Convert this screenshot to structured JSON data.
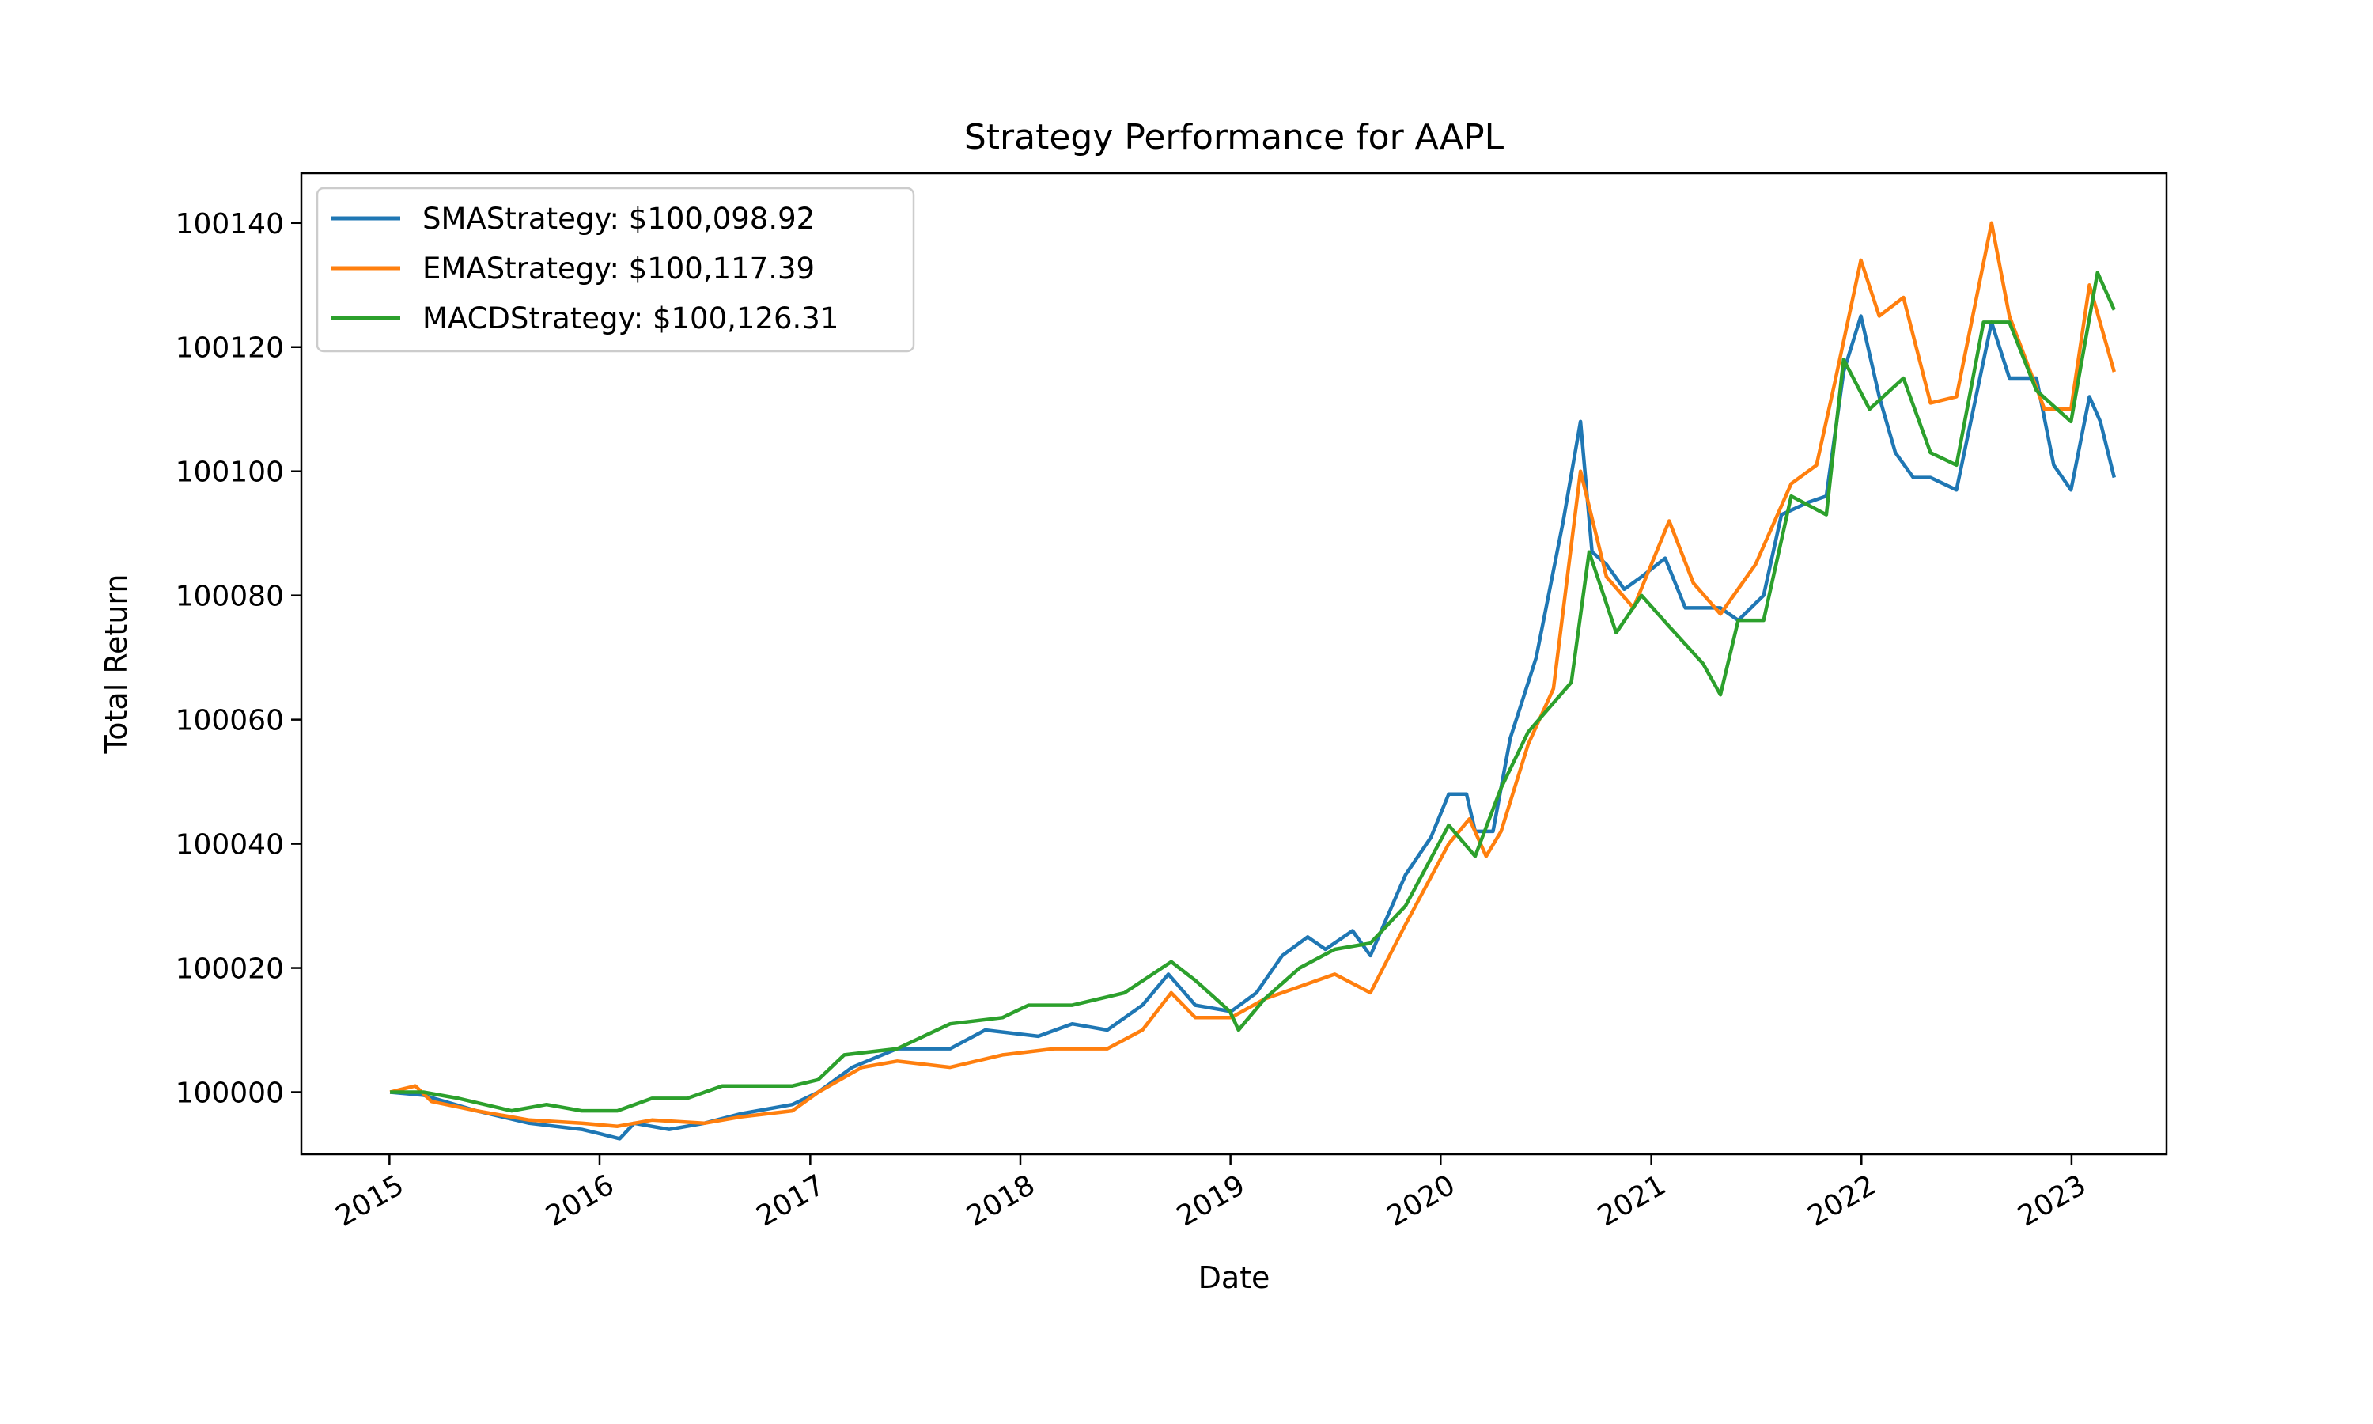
{
  "chart_data": {
    "type": "line",
    "title": "Strategy Performance for AAPL",
    "xlabel": "Date",
    "ylabel": "Total Return",
    "xlim": [
      "2014-08-01",
      "2023-06-15"
    ],
    "ylim": [
      99990,
      100148
    ],
    "x_ticks": [
      {
        "date": "2015-01-01",
        "label": "2015"
      },
      {
        "date": "2016-01-01",
        "label": "2016"
      },
      {
        "date": "2017-01-01",
        "label": "2017"
      },
      {
        "date": "2018-01-01",
        "label": "2018"
      },
      {
        "date": "2019-01-01",
        "label": "2019"
      },
      {
        "date": "2020-01-01",
        "label": "2020"
      },
      {
        "date": "2021-01-01",
        "label": "2021"
      },
      {
        "date": "2022-01-01",
        "label": "2022"
      },
      {
        "date": "2023-01-01",
        "label": "2023"
      }
    ],
    "y_ticks": [
      {
        "value": 100000,
        "label": "100000"
      },
      {
        "value": 100020,
        "label": "100020"
      },
      {
        "value": 100040,
        "label": "100040"
      },
      {
        "value": 100060,
        "label": "100060"
      },
      {
        "value": 100080,
        "label": "100080"
      },
      {
        "value": 100100,
        "label": "100100"
      },
      {
        "value": 100120,
        "label": "100120"
      },
      {
        "value": 100140,
        "label": "100140"
      }
    ],
    "grid": false,
    "legend_position": "top-left",
    "series": [
      {
        "name": "SMAStrategy: $100,098.92",
        "color": "#1f77b4",
        "points": [
          [
            "2015-01-02",
            100000
          ],
          [
            "2015-03-01",
            99999.5
          ],
          [
            "2015-06-01",
            99997
          ],
          [
            "2015-09-01",
            99995
          ],
          [
            "2015-12-01",
            99994
          ],
          [
            "2016-01-15",
            99993
          ],
          [
            "2016-02-05",
            99992.5
          ],
          [
            "2016-03-01",
            99995
          ],
          [
            "2016-05-01",
            99994
          ],
          [
            "2016-07-01",
            99995
          ],
          [
            "2016-09-01",
            99996.5
          ],
          [
            "2016-12-01",
            99998
          ],
          [
            "2017-01-15",
            100000
          ],
          [
            "2017-03-15",
            100004
          ],
          [
            "2017-06-01",
            100007
          ],
          [
            "2017-09-01",
            100007
          ],
          [
            "2017-11-01",
            100010
          ],
          [
            "2018-02-01",
            100009
          ],
          [
            "2018-04-01",
            100011
          ],
          [
            "2018-06-01",
            100010
          ],
          [
            "2018-08-01",
            100014
          ],
          [
            "2018-09-15",
            100019
          ],
          [
            "2018-11-01",
            100014
          ],
          [
            "2019-01-02",
            100013
          ],
          [
            "2019-02-15",
            100016
          ],
          [
            "2019-04-01",
            100022
          ],
          [
            "2019-05-15",
            100025
          ],
          [
            "2019-06-15",
            100023
          ],
          [
            "2019-08-01",
            100026
          ],
          [
            "2019-09-01",
            100022
          ],
          [
            "2019-11-01",
            100035
          ],
          [
            "2019-12-15",
            100041
          ],
          [
            "2020-01-15",
            100048
          ],
          [
            "2020-02-15",
            100048
          ],
          [
            "2020-03-01",
            100042
          ],
          [
            "2020-04-01",
            100042
          ],
          [
            "2020-05-01",
            100057
          ],
          [
            "2020-06-15",
            100070
          ],
          [
            "2020-08-01",
            100092
          ],
          [
            "2020-08-31",
            100108
          ],
          [
            "2020-09-20",
            100087
          ],
          [
            "2020-10-15",
            100085
          ],
          [
            "2020-11-15",
            100081
          ],
          [
            "2020-12-15",
            100083
          ],
          [
            "2021-01-25",
            100086
          ],
          [
            "2021-03-01",
            100078
          ],
          [
            "2021-05-01",
            100078
          ],
          [
            "2021-06-01",
            100076
          ],
          [
            "2021-07-15",
            100080
          ],
          [
            "2021-08-15",
            100093
          ],
          [
            "2021-10-01",
            100095
          ],
          [
            "2021-11-01",
            100096
          ],
          [
            "2021-12-01",
            100116
          ],
          [
            "2021-12-31",
            100125
          ],
          [
            "2022-02-01",
            100112
          ],
          [
            "2022-03-01",
            100103
          ],
          [
            "2022-04-01",
            100099
          ],
          [
            "2022-05-01",
            100099
          ],
          [
            "2022-06-15",
            100097
          ],
          [
            "2022-08-15",
            100124
          ],
          [
            "2022-09-15",
            100115
          ],
          [
            "2022-11-01",
            100115
          ],
          [
            "2022-12-01",
            100101
          ],
          [
            "2022-12-31",
            100097
          ],
          [
            "2023-02-01",
            100112
          ],
          [
            "2023-02-20",
            100108
          ],
          [
            "2023-03-16",
            100099
          ]
        ]
      },
      {
        "name": "EMAStrategy: $100,117.39",
        "color": "#ff7f0e",
        "points": [
          [
            "2015-01-02",
            100000
          ],
          [
            "2015-02-15",
            100001
          ],
          [
            "2015-03-15",
            99998.5
          ],
          [
            "2015-06-01",
            99997
          ],
          [
            "2015-09-01",
            99995.5
          ],
          [
            "2015-12-01",
            99995
          ],
          [
            "2016-02-01",
            99994.5
          ],
          [
            "2016-04-01",
            99995.5
          ],
          [
            "2016-07-01",
            99995
          ],
          [
            "2016-09-01",
            99996
          ],
          [
            "2016-12-01",
            99997
          ],
          [
            "2017-01-15",
            100000
          ],
          [
            "2017-04-01",
            100004
          ],
          [
            "2017-06-01",
            100005
          ],
          [
            "2017-09-01",
            100004
          ],
          [
            "2017-12-01",
            100006
          ],
          [
            "2018-03-01",
            100007
          ],
          [
            "2018-06-01",
            100007
          ],
          [
            "2018-08-01",
            100010
          ],
          [
            "2018-09-20",
            100016
          ],
          [
            "2018-11-01",
            100012
          ],
          [
            "2019-01-02",
            100012
          ],
          [
            "2019-03-01",
            100015
          ],
          [
            "2019-05-01",
            100017
          ],
          [
            "2019-07-01",
            100019
          ],
          [
            "2019-09-01",
            100016
          ],
          [
            "2019-11-01",
            100027
          ],
          [
            "2020-01-15",
            100040
          ],
          [
            "2020-02-20",
            100044
          ],
          [
            "2020-03-20",
            100038
          ],
          [
            "2020-04-15",
            100042
          ],
          [
            "2020-06-01",
            100056
          ],
          [
            "2020-07-15",
            100065
          ],
          [
            "2020-08-31",
            100100
          ],
          [
            "2020-10-15",
            100083
          ],
          [
            "2020-12-01",
            100078
          ],
          [
            "2021-02-01",
            100092
          ],
          [
            "2021-03-15",
            100082
          ],
          [
            "2021-05-01",
            100077
          ],
          [
            "2021-07-01",
            100085
          ],
          [
            "2021-09-01",
            100098
          ],
          [
            "2021-10-15",
            100101
          ],
          [
            "2021-11-15",
            100114
          ],
          [
            "2021-12-31",
            100134
          ],
          [
            "2022-02-01",
            100125
          ],
          [
            "2022-03-15",
            100128
          ],
          [
            "2022-05-01",
            100111
          ],
          [
            "2022-06-15",
            100112
          ],
          [
            "2022-08-15",
            100140
          ],
          [
            "2022-09-15",
            100125
          ],
          [
            "2022-11-15",
            100110
          ],
          [
            "2022-12-31",
            100110
          ],
          [
            "2023-02-01",
            100130
          ],
          [
            "2023-03-16",
            100116
          ]
        ]
      },
      {
        "name": "MACDStrategy: $100,126.31",
        "color": "#2ca02c",
        "points": [
          [
            "2015-01-02",
            100000
          ],
          [
            "2015-03-01",
            100000
          ],
          [
            "2015-05-01",
            99999
          ],
          [
            "2015-08-01",
            99997
          ],
          [
            "2015-10-01",
            99998
          ],
          [
            "2015-12-01",
            99997
          ],
          [
            "2016-02-01",
            99997
          ],
          [
            "2016-04-01",
            99999
          ],
          [
            "2016-06-01",
            99999
          ],
          [
            "2016-08-01",
            100001
          ],
          [
            "2016-12-01",
            100001
          ],
          [
            "2017-01-15",
            100002
          ],
          [
            "2017-03-01",
            100006
          ],
          [
            "2017-06-01",
            100007
          ],
          [
            "2017-09-01",
            100011
          ],
          [
            "2017-12-01",
            100012
          ],
          [
            "2018-01-15",
            100014
          ],
          [
            "2018-04-01",
            100014
          ],
          [
            "2018-07-01",
            100016
          ],
          [
            "2018-09-20",
            100021
          ],
          [
            "2018-11-01",
            100018
          ],
          [
            "2018-12-31",
            100013
          ],
          [
            "2019-01-15",
            100010
          ],
          [
            "2019-03-01",
            100015
          ],
          [
            "2019-05-01",
            100020
          ],
          [
            "2019-07-01",
            100023
          ],
          [
            "2019-09-01",
            100024
          ],
          [
            "2019-11-01",
            100030
          ],
          [
            "2020-01-15",
            100043
          ],
          [
            "2020-03-01",
            100038
          ],
          [
            "2020-04-15",
            100049
          ],
          [
            "2020-06-01",
            100058
          ],
          [
            "2020-08-15",
            100066
          ],
          [
            "2020-09-15",
            100087
          ],
          [
            "2020-11-01",
            100074
          ],
          [
            "2020-12-15",
            100080
          ],
          [
            "2021-02-01",
            100075
          ],
          [
            "2021-04-01",
            100069
          ],
          [
            "2021-05-01",
            100064
          ],
          [
            "2021-06-01",
            100076
          ],
          [
            "2021-07-15",
            100076
          ],
          [
            "2021-09-01",
            100096
          ],
          [
            "2021-11-01",
            100093
          ],
          [
            "2021-12-01",
            100118
          ],
          [
            "2022-01-15",
            100110
          ],
          [
            "2022-03-15",
            100115
          ],
          [
            "2022-05-01",
            100103
          ],
          [
            "2022-06-15",
            100101
          ],
          [
            "2022-08-01",
            100124
          ],
          [
            "2022-09-15",
            100124
          ],
          [
            "2022-11-01",
            100113
          ],
          [
            "2022-12-31",
            100108
          ],
          [
            "2023-02-15",
            100132
          ],
          [
            "2023-03-16",
            100126
          ]
        ]
      }
    ]
  }
}
